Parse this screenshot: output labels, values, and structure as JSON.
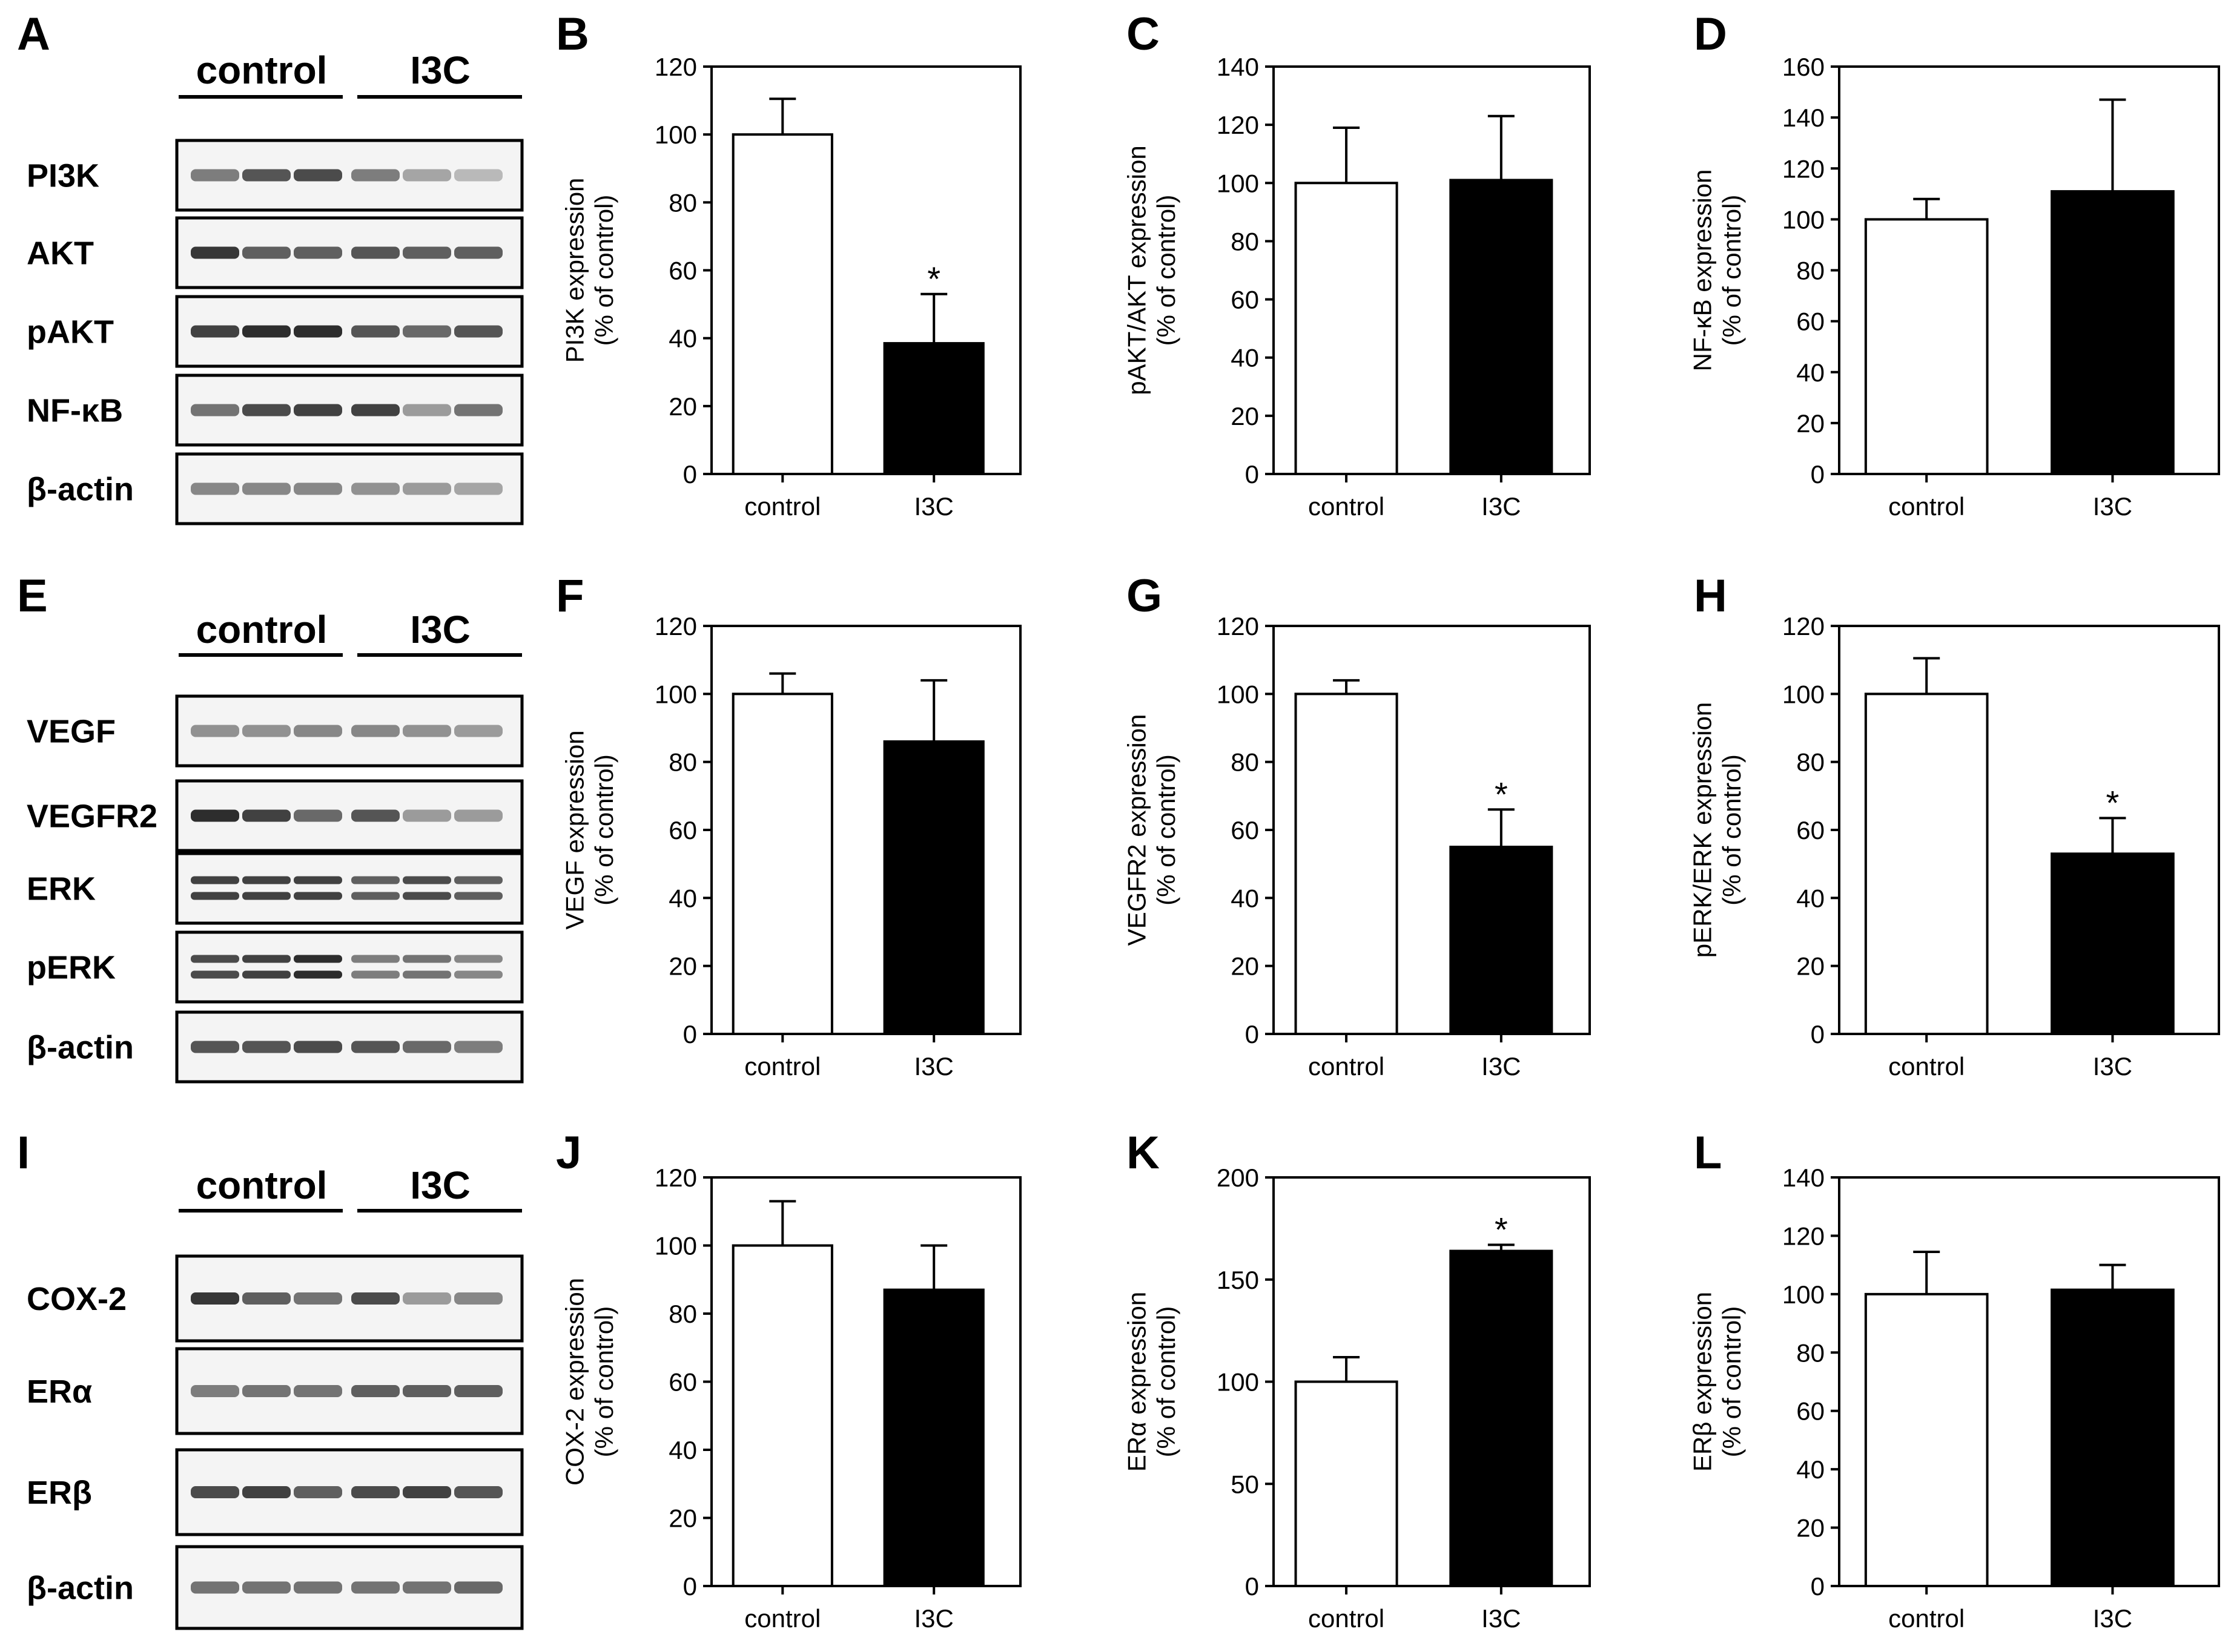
{
  "figure": {
    "group_labels": [
      "control",
      "I3C"
    ],
    "lanes_per_group": 3
  },
  "blot_panels": [
    {
      "letter": "A",
      "proteins": [
        {
          "name": "PI3K",
          "intensity": [
            0.55,
            0.75,
            0.8,
            0.55,
            0.35,
            0.25
          ]
        },
        {
          "name": "AKT",
          "intensity": [
            0.9,
            0.7,
            0.7,
            0.75,
            0.7,
            0.7
          ]
        },
        {
          "name": "pAKT",
          "intensity": [
            0.85,
            0.95,
            0.95,
            0.75,
            0.65,
            0.75
          ]
        },
        {
          "name": "NF-κB",
          "intensity": [
            0.6,
            0.8,
            0.85,
            0.85,
            0.4,
            0.6
          ]
        },
        {
          "name": "β-actin",
          "intensity": [
            0.5,
            0.5,
            0.5,
            0.45,
            0.4,
            0.35
          ]
        }
      ]
    },
    {
      "letter": "E",
      "proteins": [
        {
          "name": "VEGF",
          "intensity": [
            0.45,
            0.45,
            0.5,
            0.5,
            0.45,
            0.4
          ]
        },
        {
          "name": "VEGFR2",
          "intensity": [
            0.95,
            0.85,
            0.65,
            0.75,
            0.4,
            0.4
          ]
        },
        {
          "name": "ERK",
          "intensity": [
            0.85,
            0.85,
            0.85,
            0.7,
            0.8,
            0.7
          ],
          "double": true
        },
        {
          "name": "pERK",
          "intensity": [
            0.8,
            0.85,
            0.95,
            0.55,
            0.6,
            0.5
          ],
          "double": true
        },
        {
          "name": "β-actin",
          "intensity": [
            0.75,
            0.75,
            0.8,
            0.75,
            0.65,
            0.55
          ]
        }
      ]
    },
    {
      "letter": "I",
      "proteins": [
        {
          "name": "COX-2",
          "intensity": [
            0.9,
            0.7,
            0.6,
            0.8,
            0.4,
            0.5
          ]
        },
        {
          "name": "ERα",
          "intensity": [
            0.55,
            0.6,
            0.6,
            0.7,
            0.7,
            0.7
          ]
        },
        {
          "name": "ERβ",
          "intensity": [
            0.8,
            0.85,
            0.7,
            0.8,
            0.85,
            0.75
          ]
        },
        {
          "name": "β-actin",
          "intensity": [
            0.6,
            0.6,
            0.6,
            0.6,
            0.6,
            0.65
          ]
        }
      ]
    }
  ],
  "chart_data": [
    {
      "panel": "B",
      "type": "bar",
      "categories": [
        "control",
        "I3C"
      ],
      "values": [
        100,
        38.5
      ],
      "errors": [
        10.5,
        14.5
      ],
      "significant": [
        false,
        true
      ],
      "ylabel_line1": "PI3K expression",
      "ylabel_line2": "(% of control)",
      "ylim": [
        0,
        120
      ],
      "yticks": [
        0,
        20,
        40,
        60,
        80,
        100,
        120
      ],
      "ytick_labels": [
        "0",
        "20",
        "40",
        "60",
        "80",
        "100",
        "120"
      ],
      "bar_colors": [
        "#ffffff",
        "#000000"
      ],
      "significance_marker": "*"
    },
    {
      "panel": "C",
      "type": "bar",
      "categories": [
        "control",
        "I3C"
      ],
      "values": [
        100,
        101
      ],
      "errors": [
        19,
        22
      ],
      "significant": [
        false,
        false
      ],
      "ylabel_line1": "pAKT/AKT expression",
      "ylabel_line2": "(% of control)",
      "ylim": [
        0,
        140
      ],
      "yticks": [
        0,
        20,
        40,
        60,
        80,
        100,
        120,
        140
      ],
      "ytick_labels": [
        "0",
        "20",
        "40",
        "60",
        "80",
        "100",
        "120",
        "140"
      ],
      "bar_colors": [
        "#ffffff",
        "#000000"
      ],
      "significance_marker": "*"
    },
    {
      "panel": "D",
      "type": "bar",
      "categories": [
        "control",
        "I3C"
      ],
      "values": [
        100,
        111
      ],
      "errors": [
        8,
        36
      ],
      "significant": [
        false,
        false
      ],
      "ylabel_line1": "NF-κB expression",
      "ylabel_line2": "(% of control)",
      "ylim": [
        0,
        160
      ],
      "yticks": [
        0,
        20,
        40,
        60,
        80,
        100,
        120,
        140,
        160
      ],
      "ytick_labels": [
        "0",
        "20",
        "40",
        "60",
        "80",
        "100",
        "120",
        "140",
        "160"
      ],
      "bar_colors": [
        "#ffffff",
        "#000000"
      ],
      "significance_marker": "*"
    },
    {
      "panel": "F",
      "type": "bar",
      "categories": [
        "control",
        "I3C"
      ],
      "values": [
        100,
        86
      ],
      "errors": [
        6,
        18
      ],
      "significant": [
        false,
        false
      ],
      "ylabel_line1": "VEGF expression",
      "ylabel_line2": "(% of control)",
      "ylim": [
        0,
        120
      ],
      "yticks": [
        0,
        20,
        40,
        60,
        80,
        100,
        120
      ],
      "ytick_labels": [
        "0",
        "20",
        "40",
        "60",
        "80",
        "100",
        "120"
      ],
      "bar_colors": [
        "#ffffff",
        "#000000"
      ],
      "significance_marker": "*"
    },
    {
      "panel": "G",
      "type": "bar",
      "categories": [
        "control",
        "I3C"
      ],
      "values": [
        100,
        55
      ],
      "errors": [
        4,
        11
      ],
      "significant": [
        false,
        true
      ],
      "ylabel_line1": "VEGFR2 expression",
      "ylabel_line2": "(% of control)",
      "ylim": [
        0,
        120
      ],
      "yticks": [
        0,
        20,
        40,
        60,
        80,
        100,
        120
      ],
      "ytick_labels": [
        "0",
        "20",
        "40",
        "60",
        "80",
        "100",
        "120"
      ],
      "bar_colors": [
        "#ffffff",
        "#000000"
      ],
      "significance_marker": "*"
    },
    {
      "panel": "H",
      "type": "bar",
      "categories": [
        "control",
        "I3C"
      ],
      "values": [
        100,
        53
      ],
      "errors": [
        10.5,
        10.5
      ],
      "significant": [
        false,
        true
      ],
      "ylabel_line1": "pERK/ERK expression",
      "ylabel_line2": "(% of control)",
      "ylim": [
        0,
        120
      ],
      "yticks": [
        0,
        20,
        40,
        60,
        80,
        100,
        120
      ],
      "ytick_labels": [
        "0",
        "20",
        "40",
        "60",
        "80",
        "100",
        "120"
      ],
      "bar_colors": [
        "#ffffff",
        "#000000"
      ],
      "significance_marker": "*"
    },
    {
      "panel": "J",
      "type": "bar",
      "categories": [
        "control",
        "I3C"
      ],
      "values": [
        100,
        87
      ],
      "errors": [
        13,
        13
      ],
      "significant": [
        false,
        false
      ],
      "ylabel_line1": "COX-2 expression",
      "ylabel_line2": "(% of control)",
      "ylim": [
        0,
        120
      ],
      "yticks": [
        0,
        20,
        40,
        60,
        80,
        100,
        120
      ],
      "ytick_labels": [
        "0",
        "20",
        "40",
        "60",
        "80",
        "100",
        "120"
      ],
      "bar_colors": [
        "#ffffff",
        "#000000"
      ],
      "significance_marker": "*"
    },
    {
      "panel": "K",
      "type": "bar",
      "categories": [
        "control",
        "I3C"
      ],
      "values": [
        100,
        164
      ],
      "errors": [
        12,
        3
      ],
      "significant": [
        false,
        true
      ],
      "ylabel_line1": "ERα expression",
      "ylabel_line2": "(% of control)",
      "ylim": [
        0,
        200
      ],
      "yticks": [
        0,
        50,
        100,
        150,
        200
      ],
      "ytick_labels": [
        "0",
        "50",
        "100",
        "150",
        "200"
      ],
      "bar_colors": [
        "#ffffff",
        "#000000"
      ],
      "significance_marker": "*"
    },
    {
      "panel": "L",
      "type": "bar",
      "categories": [
        "control",
        "I3C"
      ],
      "values": [
        100,
        101.5
      ],
      "errors": [
        14.5,
        8.5
      ],
      "significant": [
        false,
        false
      ],
      "ylabel_line1": "ERβ expression",
      "ylabel_line2": "(% of control)",
      "ylim": [
        0,
        140
      ],
      "yticks": [
        0,
        20,
        40,
        60,
        80,
        100,
        120,
        140
      ],
      "ytick_labels": [
        "0",
        "20",
        "40",
        "60",
        "80",
        "100",
        "120",
        "140"
      ],
      "bar_colors": [
        "#ffffff",
        "#000000"
      ],
      "significance_marker": "*"
    }
  ]
}
